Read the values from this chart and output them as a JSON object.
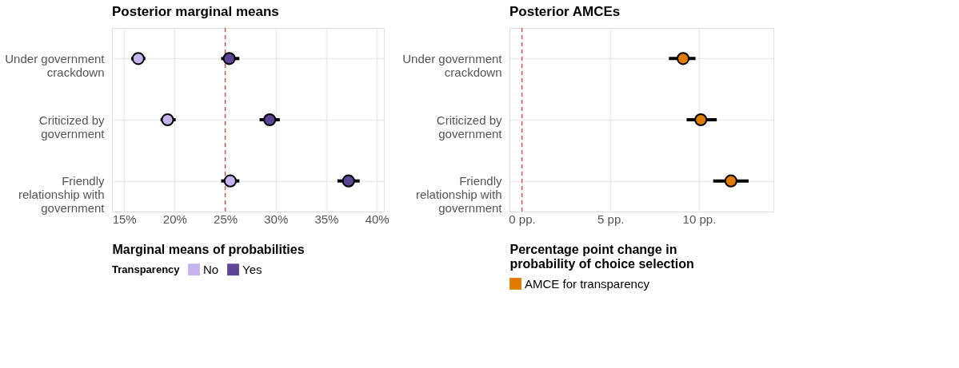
{
  "chart_data": [
    {
      "type": "scatter",
      "title": "Posterior marginal means",
      "orientation": "horizontal",
      "categories": [
        "Under government\ncrackdown",
        "Criticized by\ngovernment",
        "Friendly\nrelationship with\ngovernment"
      ],
      "xlabel": "Marginal means of probabilities",
      "xlim": [
        13.8,
        40.7
      ],
      "xticks": [
        {
          "value": 15,
          "label": "15%"
        },
        {
          "value": 20,
          "label": "20%"
        },
        {
          "value": 25,
          "label": "25%"
        },
        {
          "value": 30,
          "label": "30%"
        },
        {
          "value": 35,
          "label": "35%"
        },
        {
          "value": 40,
          "label": "40%"
        }
      ],
      "grid": true,
      "legend": "bottom",
      "legend_title": "Transparency",
      "marker": "circle",
      "ref_lines": [
        {
          "axis": "x",
          "value": 25,
          "color": "#e0453a",
          "line_style": "dashed"
        }
      ],
      "series": [
        {
          "name": "No",
          "color": "#c5b3ef",
          "values": [
            16.4,
            19.3,
            25.5
          ],
          "errors": [
            [
              15.7,
              17.1
            ],
            [
              18.6,
              20.1
            ],
            [
              24.6,
              26.4
            ]
          ]
        },
        {
          "name": "Yes",
          "color": "#5e4496",
          "values": [
            25.4,
            29.4,
            37.2
          ],
          "errors": [
            [
              24.6,
              26.4
            ],
            [
              28.4,
              30.4
            ],
            [
              36.1,
              38.3
            ]
          ]
        }
      ]
    },
    {
      "type": "scatter",
      "title": "Posterior AMCEs",
      "orientation": "horizontal",
      "categories": [
        "Under government\ncrackdown",
        "Criticized by\ngovernment",
        "Friendly\nrelationship with\ngovernment"
      ],
      "xlabel": "Percentage point change in\nprobability of choice selection",
      "xlim": [
        -0.7,
        14.2
      ],
      "xticks": [
        {
          "value": 0,
          "label": "0 pp."
        },
        {
          "value": 5,
          "label": "5 pp."
        },
        {
          "value": 10,
          "label": "10 pp."
        }
      ],
      "grid": true,
      "legend": "bottom",
      "marker": "circle",
      "ref_lines": [
        {
          "axis": "x",
          "value": 0,
          "color": "#e0453a",
          "line_style": "dashed"
        }
      ],
      "series": [
        {
          "name": "AMCE for transparency",
          "color": "#e07b00",
          "values": [
            9.1,
            10.1,
            11.8
          ],
          "errors": [
            [
              8.3,
              9.8
            ],
            [
              9.3,
              11.0
            ],
            [
              10.8,
              12.8
            ]
          ]
        }
      ]
    }
  ]
}
